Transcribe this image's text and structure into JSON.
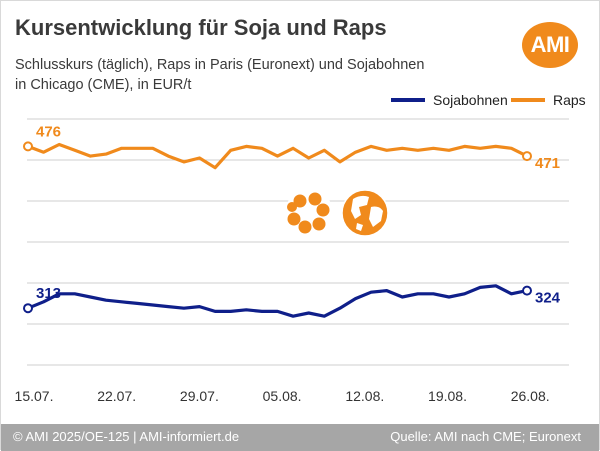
{
  "header": {
    "title": "Kursentwicklung für Soja und Raps",
    "subtitle": "Schlusskurs (täglich), Raps in Paris (Euronext) und Sojabohnen in Chicago (CME), in EUR/t"
  },
  "logo": {
    "text": "AMI",
    "color": "#f08a1c"
  },
  "icons": [
    "flower-icon",
    "globe-icon"
  ],
  "chart_data": {
    "type": "line",
    "x_ticks": [
      "15.07.",
      "22.07.",
      "29.07.",
      "05.08.",
      "12.08.",
      "19.08.",
      "26.08."
    ],
    "grid": true,
    "legend_position": "top-right",
    "series": [
      {
        "name": "Sojabohnen",
        "color": "#0f1f8a",
        "start_label": "313",
        "end_label": "324",
        "values": [
          313,
          317,
          322,
          322,
          320,
          318,
          317,
          316,
          315,
          314,
          313,
          314,
          311,
          311,
          312,
          311,
          311,
          308,
          310,
          308,
          313,
          319,
          323,
          324,
          320,
          322,
          322,
          320,
          322,
          326,
          327,
          322,
          324
        ]
      },
      {
        "name": "Raps",
        "color": "#f08a1c",
        "start_label": "476",
        "end_label": "471",
        "values": [
          476,
          473,
          477,
          474,
          471,
          472,
          475,
          475,
          475,
          471,
          468,
          470,
          465,
          474,
          476,
          475,
          471,
          475,
          470,
          474,
          468,
          473,
          476,
          474,
          475,
          474,
          475,
          474,
          476,
          475,
          476,
          475,
          471
        ]
      }
    ]
  },
  "footer": {
    "left": "© AMI 2025/OE-125 | AMI-informiert.de",
    "right": "Quelle: AMI nach CME; Euronext"
  }
}
